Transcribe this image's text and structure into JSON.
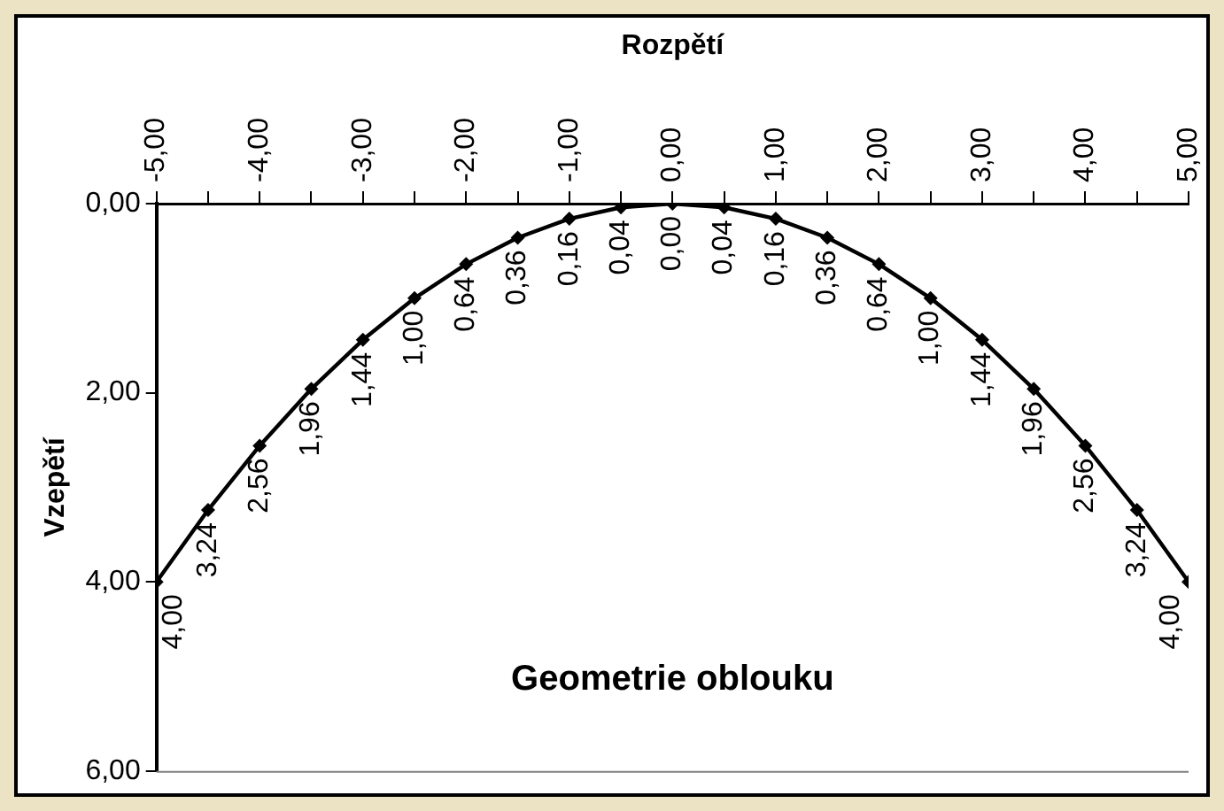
{
  "chart_data": {
    "type": "line",
    "title": "Geometrie oblouku",
    "xlabel": "Rozpětí",
    "ylabel": "Vzepětí",
    "x": [
      -5,
      -4.5,
      -4,
      -3.5,
      -3,
      -2.5,
      -2,
      -1.5,
      -1,
      -0.5,
      0,
      0.5,
      1,
      1.5,
      2,
      2.5,
      3,
      3.5,
      4,
      4.5,
      5
    ],
    "series": [
      {
        "color": "#000000",
        "values": [
          4,
          3.24,
          2.56,
          1.96,
          1.44,
          1,
          0.64,
          0.36,
          0.16,
          0.04,
          0,
          0.04,
          0.16,
          0.36,
          0.64,
          1,
          1.44,
          1.96,
          2.56,
          3.24,
          4
        ],
        "value_labels": [
          "4,00",
          "3,24",
          "2,56",
          "1,96",
          "1,44",
          "1,00",
          "0,64",
          "0,36",
          "0,16",
          "0,04",
          "0,00",
          "0,04",
          "0,16",
          "0,36",
          "0,64",
          "1,00",
          "1,44",
          "1,96",
          "2,56",
          "3,24",
          "4,00"
        ]
      }
    ],
    "xlim": [
      -5,
      5
    ],
    "xticks": [
      {
        "value": -5,
        "label": "-5,00"
      },
      {
        "value": -4.5,
        "label": null
      },
      {
        "value": -4,
        "label": "-4,00"
      },
      {
        "value": -3.5,
        "label": null
      },
      {
        "value": -3,
        "label": "-3,00"
      },
      {
        "value": -2.5,
        "label": null
      },
      {
        "value": -2,
        "label": "-2,00"
      },
      {
        "value": -1.5,
        "label": null
      },
      {
        "value": -1,
        "label": "-1,00"
      },
      {
        "value": -0.5,
        "label": null
      },
      {
        "value": 0,
        "label": "0,00"
      },
      {
        "value": 0.5,
        "label": null
      },
      {
        "value": 1,
        "label": "1,00"
      },
      {
        "value": 1.5,
        "label": null
      },
      {
        "value": 2,
        "label": "2,00"
      },
      {
        "value": 2.5,
        "label": null
      },
      {
        "value": 3,
        "label": "3,00"
      },
      {
        "value": 3.5,
        "label": null
      },
      {
        "value": 4,
        "label": "4,00"
      },
      {
        "value": 4.5,
        "label": null
      },
      {
        "value": 5,
        "label": "5,00"
      }
    ],
    "ylim": [
      6,
      0
    ],
    "yticks": [
      {
        "value": 0,
        "label": "0,00"
      },
      {
        "value": 2,
        "label": "2,00"
      },
      {
        "value": 4,
        "label": "4,00"
      },
      {
        "value": 6,
        "label": "6,00"
      }
    ],
    "grid": false,
    "legend": false,
    "marker": "diamond",
    "line_style": "solid"
  }
}
